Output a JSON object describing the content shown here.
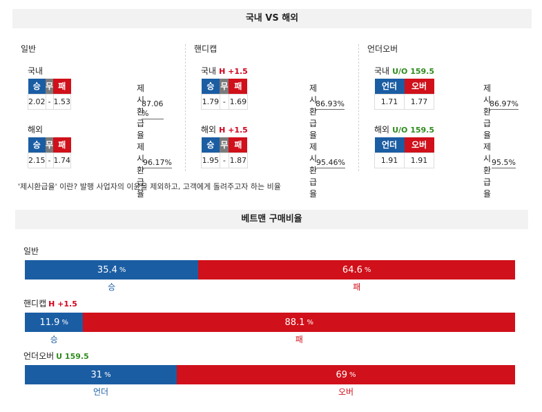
{
  "top_header": "국내 VS 해외",
  "rate_label": "제시환급율",
  "columns": [
    {
      "title": "일반",
      "blocks": [
        {
          "name": "국내",
          "tag": "",
          "headers": [
            "승",
            "무",
            "패"
          ],
          "values": [
            "2.02",
            "-",
            "1.53"
          ],
          "rate": "87.06 %"
        },
        {
          "name": "해외",
          "tag": "",
          "headers": [
            "승",
            "무",
            "패"
          ],
          "values": [
            "2.15",
            "-",
            "1.74"
          ],
          "rate": "96.17%"
        }
      ]
    },
    {
      "title": "핸디캡",
      "blocks": [
        {
          "name": "국내",
          "tag": "H +1.5",
          "headers": [
            "승",
            "무",
            "패"
          ],
          "values": [
            "1.79",
            "-",
            "1.69"
          ],
          "rate": "86.93%"
        },
        {
          "name": "해외",
          "tag": "H +1.5",
          "headers": [
            "승",
            "무",
            "패"
          ],
          "values": [
            "1.95",
            "-",
            "1.87"
          ],
          "rate": "95.46%"
        }
      ]
    },
    {
      "title": "언더오버",
      "blocks": [
        {
          "name": "국내",
          "tag": "U/O 159.5",
          "headers": [
            "언더",
            "오버"
          ],
          "values": [
            "1.71",
            "1.77"
          ],
          "rate": "86.97%"
        },
        {
          "name": "해외",
          "tag": "U/O 159.5",
          "headers": [
            "언더",
            "오버"
          ],
          "values": [
            "1.91",
            "1.91"
          ],
          "rate": "95.5%"
        }
      ]
    }
  ],
  "note": "'제시환급율' 이란? 발행 사업자의 이윤을 제외하고, 고객에게 돌려주고자 하는 비율",
  "bet_header": "베트맨 구매비율",
  "bets": [
    {
      "title": "일반",
      "tag": "",
      "left_pct": 35.4,
      "right_pct": 64.6,
      "left_text": "35.4",
      "right_text": "64.6",
      "unit": "%",
      "left_label": "승",
      "right_label": "패"
    },
    {
      "title": "핸디캡",
      "tag": "H +1.5",
      "left_pct": 11.9,
      "right_pct": 88.1,
      "left_text": "11.9",
      "right_text": "88.1",
      "unit": "%",
      "left_label": "승",
      "right_label": "패"
    },
    {
      "title": "언더오버",
      "tag": "U 159.5",
      "left_pct": 31,
      "right_pct": 69,
      "left_text": "31",
      "right_text": "69",
      "unit": "%",
      "left_label": "언더",
      "right_label": "오버"
    }
  ],
  "colors": {
    "blue": "#1b5da3",
    "red": "#d0101a",
    "gray": "#7b7b7b",
    "tag_red": "#d0021b",
    "tag_green": "#2e8b1d"
  }
}
